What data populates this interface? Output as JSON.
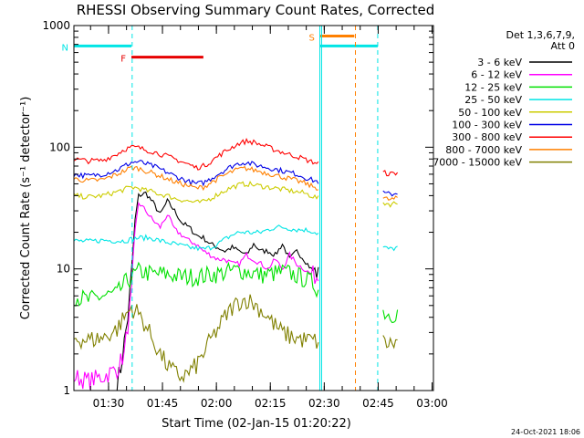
{
  "chart_data": {
    "type": "line",
    "title": "RHESSI Observing Summary Count Rates, Corrected",
    "xlabel": "Start Time (02-Jan-15 01:20:22)",
    "ylabel": "Corrected Count Rate (s⁻¹ detector⁻¹)",
    "footer": "24-Oct-2021 18:06",
    "y_scale": "log",
    "ylim": [
      1,
      1000
    ],
    "y_ticks": [
      {
        "label": "1",
        "value": 1
      },
      {
        "label": "10",
        "value": 10
      },
      {
        "label": "100",
        "value": 100
      },
      {
        "label": "1000",
        "value": 1000
      }
    ],
    "x_range_min": [
      0,
      100
    ],
    "x_ticks": [
      {
        "label": "01:30",
        "value": 9.63
      },
      {
        "label": "01:45",
        "value": 24.63
      },
      {
        "label": "02:00",
        "value": 39.63
      },
      {
        "label": "02:15",
        "value": 54.63
      },
      {
        "label": "02:30",
        "value": 69.63
      },
      {
        "label": "02:45",
        "value": 84.63
      },
      {
        "label": "03:00",
        "value": 99.63
      }
    ],
    "legend": {
      "position": "right",
      "header_line1": "Det 1,3,6,7,9,",
      "header_line2": "Att 0"
    },
    "flags": [
      {
        "label": "N",
        "color": "#00e5e5",
        "x_start": 0,
        "x_end": 16,
        "y": 680
      },
      {
        "label": "F",
        "color": "#e60000",
        "x_start": 16,
        "x_end": 36,
        "y": 550
      },
      {
        "label": "S",
        "color": "#ff8000",
        "x_start": 68.5,
        "x_end": 78,
        "y": 820
      },
      {
        "label": "",
        "color": "#00e5e5",
        "x_start": 68.5,
        "x_end": 84.5,
        "y": 680
      }
    ],
    "vlines": [
      {
        "x": 16.2,
        "color": "#00e5e5",
        "style": "dashed"
      },
      {
        "x": 68.4,
        "color": "#00e5e5",
        "style": "solid"
      },
      {
        "x": 68.9,
        "color": "#00e5e5",
        "style": "solid"
      },
      {
        "x": 78.3,
        "color": "#ff8000",
        "style": "dashed"
      },
      {
        "x": 84.5,
        "color": "#00e5e5",
        "style": "dashed"
      }
    ],
    "series": [
      {
        "name": "3 - 6 keV",
        "color": "#000000",
        "x": [
          12,
          13,
          14,
          15,
          16,
          17,
          18,
          20,
          22,
          24,
          26,
          28,
          30,
          32,
          34,
          36,
          38,
          40,
          42,
          44,
          46,
          48,
          50,
          52,
          54,
          56,
          58,
          60,
          62,
          64,
          66,
          67,
          68
        ],
        "y": [
          1.2,
          1.5,
          2.5,
          4,
          9,
          25,
          40,
          42,
          35,
          28,
          36,
          30,
          24,
          22,
          19,
          18,
          16,
          15,
          14,
          15,
          14,
          13,
          16,
          14,
          14,
          13,
          16,
          12,
          14,
          12,
          10,
          9.5,
          9
        ]
      },
      {
        "name": "6 - 12 keV",
        "color": "#ff00ff",
        "x": [
          0,
          4,
          8,
          12,
          14,
          16,
          17,
          18,
          20,
          22,
          24,
          26,
          28,
          30,
          32,
          34,
          36,
          38,
          40,
          42,
          44,
          46,
          48,
          50,
          52,
          54,
          56,
          58,
          60,
          62,
          64,
          66,
          67,
          68
        ],
        "y": [
          1.3,
          1.2,
          1.3,
          1.5,
          2,
          6,
          20,
          35,
          30,
          25,
          22,
          28,
          21,
          19,
          17,
          16,
          14,
          13,
          12,
          12,
          11,
          11,
          13,
          12,
          11,
          10,
          12,
          10,
          13,
          11,
          10,
          9,
          8.8,
          8.5
        ]
      },
      {
        "name": "12 - 25 keV",
        "color": "#00e000",
        "x": [
          0,
          4,
          8,
          12,
          14,
          16,
          18,
          20,
          22,
          24,
          26,
          28,
          30,
          32,
          34,
          36,
          38,
          40,
          42,
          44,
          46,
          48,
          50,
          52,
          54,
          56,
          58,
          60,
          62,
          64,
          66,
          68,
          69,
          70,
          74,
          78,
          84,
          86,
          88,
          90
        ],
        "y": [
          6,
          5.5,
          6,
          6.2,
          7.5,
          8.5,
          9.5,
          9.3,
          9,
          9.1,
          9,
          8.8,
          8.6,
          8.6,
          8.6,
          8.7,
          9,
          9.1,
          9.3,
          9.6,
          9.8,
          9.5,
          9.2,
          8.9,
          9,
          9.2,
          9.4,
          9.2,
          8.8,
          8.3,
          7.8,
          6.8,
          null,
          null,
          null,
          null,
          null,
          4.5,
          4.2,
          4.4
        ]
      },
      {
        "name": "25 - 50 keV",
        "color": "#00e5e5",
        "x": [
          0,
          4,
          8,
          12,
          14,
          16,
          18,
          20,
          22,
          24,
          26,
          28,
          30,
          32,
          34,
          36,
          38,
          40,
          42,
          44,
          46,
          48,
          50,
          52,
          54,
          56,
          58,
          60,
          62,
          64,
          66,
          68,
          69,
          70,
          74,
          78,
          84,
          86,
          88,
          90
        ],
        "y": [
          17,
          16.8,
          17.2,
          17,
          17,
          17.5,
          18,
          18,
          17.8,
          17,
          16.5,
          16,
          15.5,
          15,
          14.8,
          14.5,
          15,
          16,
          17.5,
          19,
          20,
          20,
          19.8,
          20,
          21,
          22,
          22,
          21.5,
          21,
          21,
          20.5,
          19.5,
          null,
          null,
          null,
          null,
          null,
          15,
          14.5,
          15
        ]
      },
      {
        "name": "50 - 100 keV",
        "color": "#cccc00",
        "x": [
          0,
          4,
          8,
          12,
          14,
          16,
          18,
          20,
          22,
          24,
          26,
          28,
          30,
          32,
          34,
          36,
          38,
          40,
          42,
          44,
          46,
          48,
          50,
          52,
          54,
          56,
          58,
          60,
          62,
          64,
          66,
          68,
          69,
          70,
          74,
          78,
          84,
          86,
          88,
          90
        ],
        "y": [
          40,
          39,
          40,
          43,
          45,
          47,
          46,
          44,
          43,
          41,
          40,
          38,
          37,
          36,
          35,
          35.5,
          38,
          41,
          44,
          47,
          49,
          50,
          49,
          48,
          47,
          46,
          45,
          44,
          43,
          42,
          40,
          38,
          null,
          null,
          null,
          null,
          null,
          35,
          34,
          35
        ]
      },
      {
        "name": "100 - 300 keV",
        "color": "#0000e6",
        "x": [
          0,
          4,
          8,
          12,
          14,
          16,
          18,
          20,
          22,
          24,
          26,
          28,
          30,
          32,
          34,
          36,
          38,
          40,
          42,
          44,
          46,
          48,
          50,
          52,
          54,
          56,
          58,
          60,
          62,
          64,
          66,
          68,
          69,
          70,
          74,
          78,
          84,
          86,
          88,
          90
        ],
        "y": [
          60,
          58,
          60,
          65,
          70,
          75,
          76,
          73,
          70,
          66,
          62,
          58,
          55,
          52,
          50,
          51,
          55,
          60,
          65,
          70,
          74,
          75,
          72,
          70,
          68,
          66,
          64,
          62,
          60,
          57,
          54,
          52,
          null,
          null,
          null,
          null,
          null,
          42,
          41,
          42
        ]
      },
      {
        "name": "300 - 800 keV",
        "color": "#ff0000",
        "x": [
          0,
          4,
          8,
          12,
          14,
          16,
          18,
          20,
          22,
          24,
          26,
          28,
          30,
          32,
          34,
          36,
          38,
          40,
          42,
          44,
          46,
          48,
          50,
          52,
          54,
          56,
          58,
          60,
          62,
          64,
          66,
          68,
          69,
          70,
          74,
          78,
          84,
          86,
          88,
          90
        ],
        "y": [
          80,
          77,
          78,
          88,
          96,
          100,
          99,
          95,
          92,
          88,
          84,
          80,
          76,
          72,
          68,
          70,
          76,
          84,
          92,
          100,
          108,
          112,
          110,
          105,
          100,
          95,
          91,
          87,
          84,
          80,
          76,
          74,
          null,
          null,
          null,
          null,
          null,
          62,
          60,
          62
        ]
      },
      {
        "name": "800 - 7000 keV",
        "color": "#ff8000",
        "x": [
          0,
          4,
          8,
          12,
          14,
          16,
          18,
          20,
          22,
          24,
          26,
          28,
          30,
          32,
          34,
          36,
          38,
          40,
          42,
          44,
          46,
          48,
          50,
          52,
          54,
          56,
          58,
          60,
          62,
          64,
          66,
          68,
          69,
          70,
          74,
          78,
          84,
          86,
          88,
          90
        ],
        "y": [
          55,
          53,
          54,
          60,
          64,
          68,
          67,
          64,
          61,
          58,
          55,
          52,
          50,
          48,
          46,
          47,
          51,
          55,
          59,
          63,
          66,
          67,
          65,
          63,
          61,
          59,
          57,
          55,
          53,
          51,
          48,
          46,
          null,
          null,
          null,
          null,
          null,
          38,
          37,
          38
        ]
      },
      {
        "name": "7000 - 15000 keV",
        "color": "#808000",
        "x": [
          0,
          4,
          8,
          12,
          14,
          16,
          18,
          20,
          22,
          24,
          26,
          28,
          30,
          32,
          34,
          36,
          38,
          40,
          42,
          44,
          46,
          48,
          50,
          52,
          54,
          56,
          58,
          60,
          62,
          64,
          66,
          68,
          69,
          70,
          74,
          78,
          84,
          86,
          88,
          90
        ],
        "y": [
          2.7,
          2.6,
          2.7,
          3.2,
          4,
          4.8,
          4.3,
          3.4,
          2.6,
          2,
          1.6,
          1.4,
          1.3,
          1.4,
          1.6,
          2,
          2.6,
          3.2,
          4,
          4.8,
          5.4,
          5.6,
          5.2,
          4.6,
          4,
          3.4,
          3,
          2.8,
          2.7,
          2.6,
          2.6,
          2.5,
          null,
          null,
          null,
          null,
          null,
          2.5,
          2.4,
          2.5
        ]
      }
    ]
  }
}
